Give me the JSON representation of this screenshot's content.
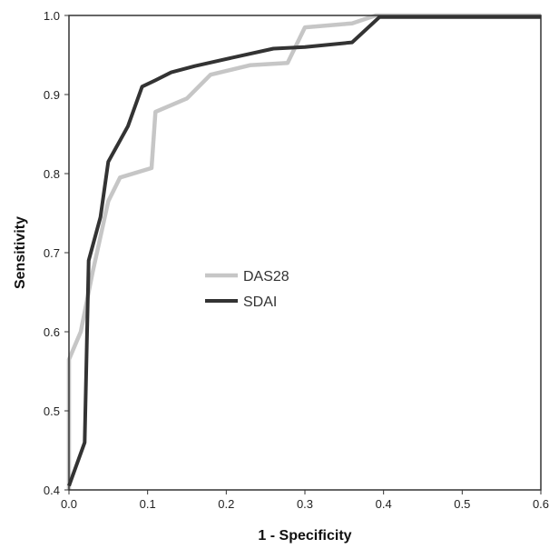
{
  "chart_data": {
    "type": "line",
    "title": "",
    "xlabel": "1 - Specificity",
    "ylabel": "Sensitivity",
    "xlim": [
      0.0,
      0.6
    ],
    "ylim": [
      0.4,
      1.0
    ],
    "x_ticks": [
      "0.0",
      "0.1",
      "0.2",
      "0.3",
      "0.4",
      "0.5",
      "0.6"
    ],
    "y_ticks": [
      "0.4",
      "0.5",
      "0.6",
      "0.7",
      "0.8",
      "0.9",
      "1.0"
    ],
    "grid": false,
    "legend_position": "center-left",
    "series": [
      {
        "name": "DAS28",
        "color": "#c6c6c6",
        "points": [
          [
            0.0,
            0.4
          ],
          [
            0.0,
            0.565
          ],
          [
            0.015,
            0.6
          ],
          [
            0.03,
            0.675
          ],
          [
            0.05,
            0.765
          ],
          [
            0.065,
            0.795
          ],
          [
            0.075,
            0.798
          ],
          [
            0.105,
            0.807
          ],
          [
            0.11,
            0.878
          ],
          [
            0.15,
            0.895
          ],
          [
            0.18,
            0.925
          ],
          [
            0.23,
            0.937
          ],
          [
            0.278,
            0.94
          ],
          [
            0.3,
            0.985
          ],
          [
            0.36,
            0.99
          ],
          [
            0.39,
            1.0
          ],
          [
            0.6,
            1.0
          ]
        ]
      },
      {
        "name": "SDAI",
        "color": "#333333",
        "points": [
          [
            0.0,
            0.405
          ],
          [
            0.02,
            0.46
          ],
          [
            0.025,
            0.69
          ],
          [
            0.04,
            0.745
          ],
          [
            0.05,
            0.815
          ],
          [
            0.075,
            0.86
          ],
          [
            0.093,
            0.91
          ],
          [
            0.11,
            0.918
          ],
          [
            0.13,
            0.928
          ],
          [
            0.16,
            0.936
          ],
          [
            0.2,
            0.945
          ],
          [
            0.26,
            0.958
          ],
          [
            0.3,
            0.96
          ],
          [
            0.36,
            0.966
          ],
          [
            0.395,
            0.998
          ],
          [
            0.6,
            0.998
          ]
        ]
      }
    ]
  }
}
